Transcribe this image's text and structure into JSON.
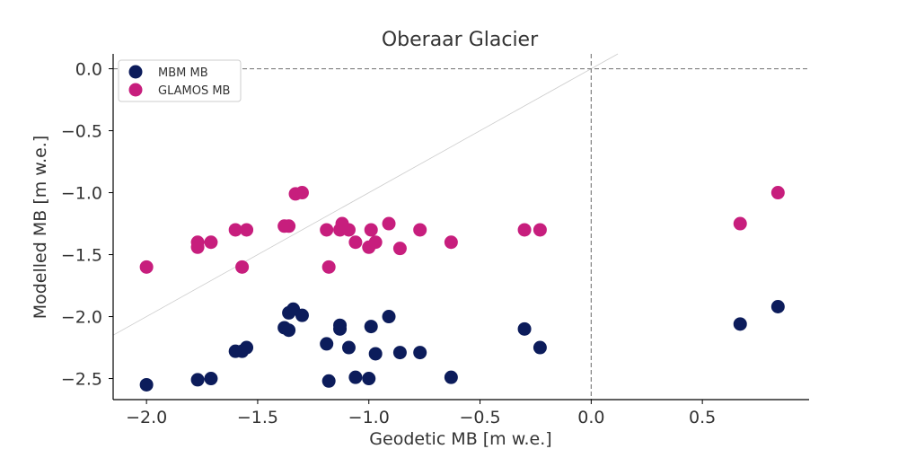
{
  "chart_data": {
    "type": "scatter",
    "title": "Oberaar Glacier",
    "xlabel": "Geodetic MB [m w.e.]",
    "ylabel": "Modelled MB [m w.e.]",
    "xlim": [
      -2.15,
      0.98
    ],
    "ylim": [
      -2.67,
      0.12
    ],
    "xticks": [
      -2.0,
      -1.5,
      -1.0,
      -0.5,
      0.0,
      0.5
    ],
    "xtick_labels": [
      "−2.0",
      "−1.5",
      "−1.0",
      "−0.5",
      "0.0",
      "0.5"
    ],
    "yticks": [
      0.0,
      -0.5,
      -1.0,
      -1.5,
      -2.0,
      -2.5
    ],
    "ytick_labels": [
      "0.0",
      "−0.5",
      "−1.0",
      "−1.5",
      "−2.0",
      "−2.5"
    ],
    "grid": false,
    "legend_position": "top-left",
    "reference_lines": [
      {
        "type": "identity",
        "color": "#cccccc"
      },
      {
        "type": "hline",
        "y": 0.0,
        "style": "dashed",
        "color": "#808080"
      },
      {
        "type": "vline",
        "x": 0.0,
        "style": "dashed",
        "color": "#808080"
      }
    ],
    "series": [
      {
        "name": "MBM MB",
        "color": "#0c1c5b",
        "points": [
          [
            -2.0,
            -2.55
          ],
          [
            -1.77,
            -2.51
          ],
          [
            -1.71,
            -2.5
          ],
          [
            -1.6,
            -2.28
          ],
          [
            -1.57,
            -2.28
          ],
          [
            -1.55,
            -2.25
          ],
          [
            -1.38,
            -2.09
          ],
          [
            -1.36,
            -2.11
          ],
          [
            -1.36,
            -1.97
          ],
          [
            -1.34,
            -1.94
          ],
          [
            -1.3,
            -1.99
          ],
          [
            -1.19,
            -2.22
          ],
          [
            -1.18,
            -2.52
          ],
          [
            -1.13,
            -2.07
          ],
          [
            -1.13,
            -2.1
          ],
          [
            -1.09,
            -2.25
          ],
          [
            -1.06,
            -2.49
          ],
          [
            -1.0,
            -2.5
          ],
          [
            -0.99,
            -2.08
          ],
          [
            -0.97,
            -2.3
          ],
          [
            -0.91,
            -2.0
          ],
          [
            -0.86,
            -2.29
          ],
          [
            -0.77,
            -2.29
          ],
          [
            -0.63,
            -2.49
          ],
          [
            -0.3,
            -2.1
          ],
          [
            -0.23,
            -2.25
          ],
          [
            0.67,
            -2.06
          ],
          [
            0.84,
            -1.92
          ]
        ]
      },
      {
        "name": "GLAMOS MB",
        "color": "#c71e7d",
        "points": [
          [
            -2.0,
            -1.6
          ],
          [
            -1.77,
            -1.4
          ],
          [
            -1.77,
            -1.44
          ],
          [
            -1.71,
            -1.4
          ],
          [
            -1.6,
            -1.3
          ],
          [
            -1.57,
            -1.6
          ],
          [
            -1.55,
            -1.3
          ],
          [
            -1.38,
            -1.27
          ],
          [
            -1.36,
            -1.27
          ],
          [
            -1.33,
            -1.01
          ],
          [
            -1.3,
            -1.0
          ],
          [
            -1.19,
            -1.3
          ],
          [
            -1.18,
            -1.6
          ],
          [
            -1.13,
            -1.3
          ],
          [
            -1.12,
            -1.25
          ],
          [
            -1.09,
            -1.3
          ],
          [
            -1.06,
            -1.4
          ],
          [
            -1.0,
            -1.44
          ],
          [
            -0.99,
            -1.3
          ],
          [
            -0.97,
            -1.4
          ],
          [
            -0.91,
            -1.25
          ],
          [
            -0.86,
            -1.45
          ],
          [
            -0.77,
            -1.3
          ],
          [
            -0.63,
            -1.4
          ],
          [
            -0.3,
            -1.3
          ],
          [
            -0.23,
            -1.3
          ],
          [
            0.67,
            -1.25
          ],
          [
            0.84,
            -1.0
          ]
        ]
      }
    ]
  }
}
